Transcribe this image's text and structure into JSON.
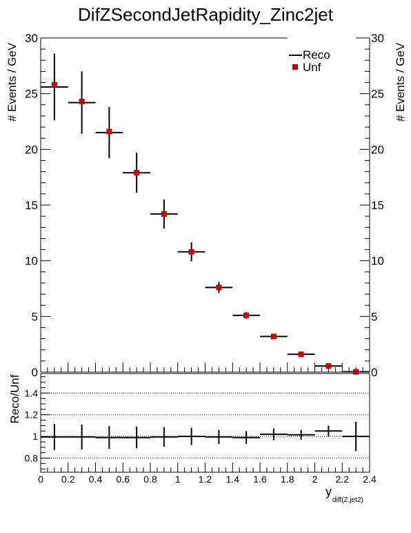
{
  "chart_data": {
    "title": "DifZSecondJetRapidity_Zinc2jet",
    "top": {
      "type": "scatter",
      "ylabel": "# Events / GeV",
      "ylim": [
        0,
        30
      ],
      "yticks": [
        "0",
        "5",
        "10",
        "15",
        "20",
        "25",
        "30"
      ],
      "legend": {
        "placement": "top-right",
        "entries": [
          "Reco",
          "Unf"
        ]
      },
      "series": [
        {
          "name": "Reco",
          "style": "error-cross",
          "color": "#000000",
          "x": [
            0.1,
            0.3,
            0.5,
            0.7,
            0.9,
            1.1,
            1.3,
            1.5,
            1.7,
            1.9,
            2.1,
            2.3
          ],
          "y": [
            25.6,
            24.2,
            21.5,
            17.9,
            14.2,
            10.8,
            7.6,
            5.1,
            3.2,
            1.6,
            0.55,
            0.03
          ],
          "yerr": [
            3.0,
            2.8,
            2.3,
            1.8,
            1.3,
            0.85,
            0.5,
            0.3,
            0.15,
            0.12,
            0.1,
            0.05
          ]
        },
        {
          "name": "Unf",
          "style": "square-marker",
          "color": "#cc0000",
          "x": [
            0.1,
            0.3,
            0.5,
            0.7,
            0.9,
            1.1,
            1.3,
            1.5,
            1.7,
            1.9,
            2.1,
            2.3
          ],
          "y": [
            25.8,
            24.3,
            21.6,
            17.9,
            14.2,
            10.8,
            7.6,
            5.1,
            3.2,
            1.6,
            0.55,
            0.03
          ]
        }
      ]
    },
    "ratio": {
      "type": "scatter",
      "ylabel": "Reco/Unf",
      "ylim": [
        0.67,
        1.58
      ],
      "yticks": [
        "0.8",
        "1",
        "1.2",
        "1.4"
      ],
      "gridlines": [
        0.8,
        1.0,
        1.2,
        1.4
      ],
      "xlabel": "y",
      "xlabel_sub": "diff(Z,jet2)",
      "xlim": [
        0,
        2.4
      ],
      "xticks": [
        "0",
        "0.2",
        "0.4",
        "0.6",
        "0.8",
        "1",
        "1.2",
        "1.4",
        "1.6",
        "1.8",
        "2",
        "2.2",
        "2.4"
      ],
      "series": [
        {
          "name": "Reco/Unf",
          "x": [
            0.1,
            0.3,
            0.5,
            0.7,
            0.9,
            1.1,
            1.3,
            1.5,
            1.7,
            1.9,
            2.1,
            2.3
          ],
          "y": [
            0.995,
            0.995,
            0.99,
            0.99,
            0.995,
            1.0,
            0.995,
            0.99,
            1.02,
            1.015,
            1.05,
            1.0
          ],
          "yerr": [
            0.12,
            0.115,
            0.105,
            0.1,
            0.09,
            0.08,
            0.065,
            0.06,
            0.055,
            0.045,
            0.05,
            0.135
          ]
        }
      ]
    }
  }
}
